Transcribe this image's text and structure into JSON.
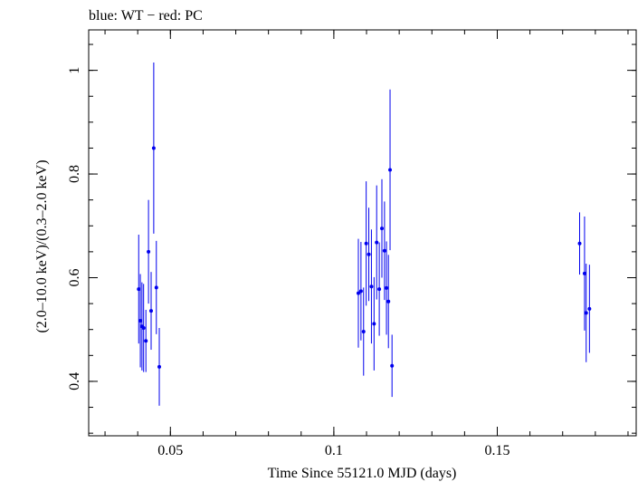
{
  "chart_data": {
    "type": "scatter",
    "title": "blue: WT − red: PC",
    "xlabel": "Time Since 55121.0 MJD (days)",
    "ylabel": "(2.0–10.0 keV)/(0.3–2.0 keV)",
    "xlim": [
      0.025,
      0.1925
    ],
    "ylim": [
      0.295,
      1.078
    ],
    "xticks": [
      {
        "value": 0.05,
        "label": "0.05"
      },
      {
        "value": 0.1,
        "label": "0.1"
      },
      {
        "value": 0.15,
        "label": "0.15"
      }
    ],
    "yticks": [
      {
        "value": 0.4,
        "label": "0.4"
      },
      {
        "value": 0.6,
        "label": "0.6"
      },
      {
        "value": 0.8,
        "label": "0.8"
      },
      {
        "value": 1.0,
        "label": "1"
      }
    ],
    "x_minor_step": 0.01,
    "y_minor_step": 0.05,
    "grid": false,
    "series": [
      {
        "name": "WT",
        "color": "#0000ee",
        "points": [
          {
            "x": 0.0403,
            "y": 0.578,
            "err": 0.105
          },
          {
            "x": 0.0408,
            "y": 0.517,
            "err": 0.09
          },
          {
            "x": 0.0413,
            "y": 0.506,
            "err": 0.085
          },
          {
            "x": 0.0418,
            "y": 0.503,
            "err": 0.085
          },
          {
            "x": 0.0425,
            "y": 0.478,
            "err": 0.06
          },
          {
            "x": 0.0433,
            "y": 0.65,
            "err": 0.1
          },
          {
            "x": 0.0441,
            "y": 0.536,
            "err": 0.075
          },
          {
            "x": 0.0449,
            "y": 0.85,
            "err": 0.165
          },
          {
            "x": 0.0457,
            "y": 0.581,
            "err": 0.09
          },
          {
            "x": 0.0466,
            "y": 0.428,
            "err": 0.075
          },
          {
            "x": 0.1075,
            "y": 0.57,
            "err": 0.105
          },
          {
            "x": 0.1083,
            "y": 0.574,
            "err": 0.095
          },
          {
            "x": 0.1091,
            "y": 0.496,
            "err": 0.085
          },
          {
            "x": 0.1099,
            "y": 0.666,
            "err": 0.12
          },
          {
            "x": 0.1107,
            "y": 0.645,
            "err": 0.09
          },
          {
            "x": 0.1115,
            "y": 0.583,
            "err": 0.11
          },
          {
            "x": 0.1123,
            "y": 0.511,
            "err": 0.09
          },
          {
            "x": 0.1131,
            "y": 0.668,
            "err": 0.11
          },
          {
            "x": 0.1139,
            "y": 0.578,
            "err": 0.09
          },
          {
            "x": 0.1147,
            "y": 0.695,
            "err": 0.095
          },
          {
            "x": 0.1155,
            "y": 0.652,
            "err": 0.095
          },
          {
            "x": 0.1161,
            "y": 0.58,
            "err": 0.09
          },
          {
            "x": 0.1167,
            "y": 0.554,
            "err": 0.09
          },
          {
            "x": 0.1172,
            "y": 0.808,
            "err": 0.155
          },
          {
            "x": 0.1178,
            "y": 0.43,
            "err": 0.06
          },
          {
            "x": 0.1752,
            "y": 0.666,
            "err": 0.06
          },
          {
            "x": 0.1767,
            "y": 0.608,
            "err": 0.11
          },
          {
            "x": 0.1772,
            "y": 0.532,
            "err": 0.095
          },
          {
            "x": 0.1782,
            "y": 0.54,
            "err": 0.085
          }
        ]
      }
    ]
  }
}
